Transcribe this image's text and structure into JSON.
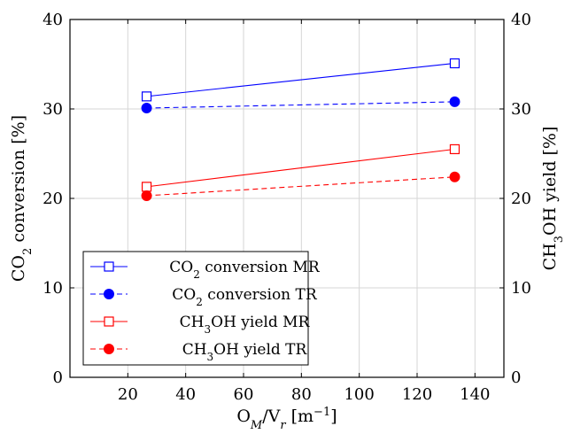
{
  "chart_data": {
    "type": "line",
    "x_axis": {
      "label": "O_M/V_r [m^-1]",
      "ticks": [
        20,
        40,
        60,
        80,
        100,
        120,
        140
      ],
      "range": [
        0,
        150
      ]
    },
    "y_left": {
      "label": "CO2 conversion [%]",
      "ticks": [
        0,
        10,
        20,
        30,
        40
      ],
      "range": [
        0,
        40
      ]
    },
    "y_right": {
      "label": "CH3OH yield [%]",
      "ticks": [
        0,
        10,
        20,
        30,
        40
      ],
      "range": [
        0,
        40
      ]
    },
    "grid": true,
    "legend_position": "bottom-left",
    "series": [
      {
        "name": "CO2 conversion MR",
        "color": "#0000ff",
        "line": "solid",
        "marker": "square-open",
        "x": [
          26.5,
          133
        ],
        "y": [
          31.4,
          35.1
        ]
      },
      {
        "name": "CO2 conversion TR",
        "color": "#0000ff",
        "line": "dashed",
        "marker": "circle-filled",
        "x": [
          26.5,
          133
        ],
        "y": [
          30.1,
          30.8
        ]
      },
      {
        "name": "CH3OH yield MR",
        "color": "#ff0000",
        "line": "solid",
        "marker": "square-open",
        "x": [
          26.5,
          133
        ],
        "y": [
          21.3,
          25.5
        ]
      },
      {
        "name": "CH3OH yield TR",
        "color": "#ff0000",
        "line": "dashed",
        "marker": "circle-filled",
        "x": [
          26.5,
          133
        ],
        "y": [
          20.3,
          22.4
        ]
      }
    ]
  }
}
